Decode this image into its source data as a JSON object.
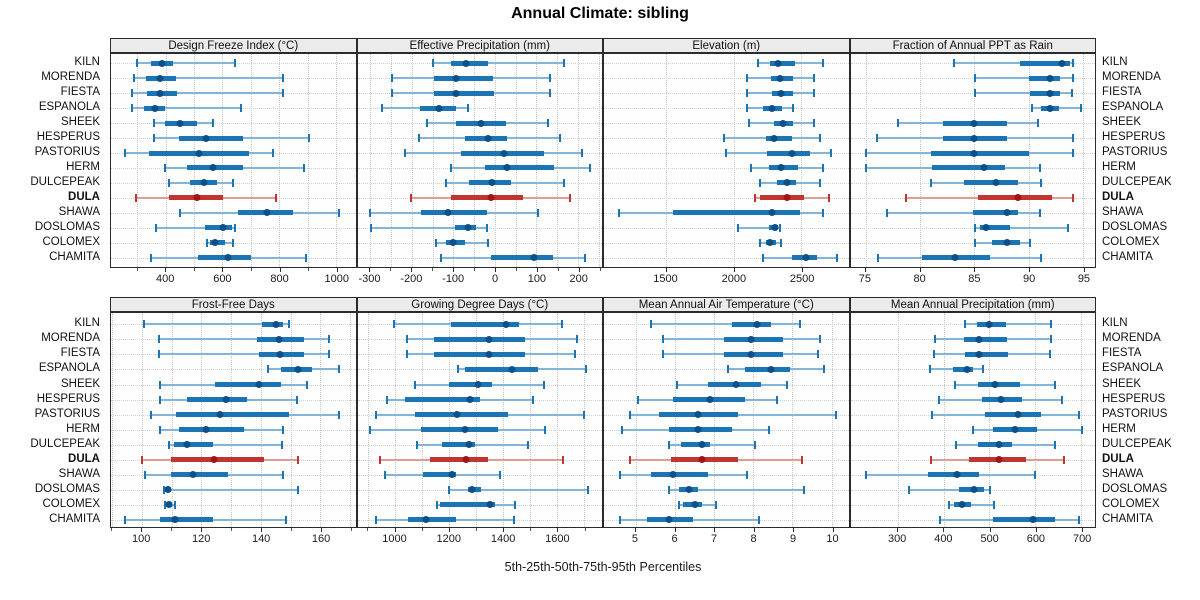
{
  "title": "Annual Climate: sibling",
  "caption": "5th-25th-50th-75th-95th Percentiles",
  "stations": [
    "KILN",
    "MORENDA",
    "FIESTA",
    "ESPANOLA",
    "SHEEK",
    "HESPERUS",
    "PASTORIUS",
    "HERM",
    "DULCEPEAK",
    "DULA",
    "SHAWA",
    "DOSLOMAS",
    "COLOMEX",
    "CHAMITA"
  ],
  "highlight_station": "DULA",
  "percentile_levels": [
    5,
    25,
    50,
    75,
    95
  ],
  "colors": {
    "blue_line": "#84b4d8",
    "blue_bar": "#1b74b3",
    "blue_dot": "#0e4f87",
    "red_line": "#dc9e97",
    "red_bar": "#c13530",
    "red_dot": "#a01616",
    "header_bg": "#ebebeb",
    "gridline": "#c6c6c6"
  },
  "chart_data": [
    {
      "type": "percentile-dotplot",
      "title": "Design Freeze Index (°C)",
      "xlim": [
        207,
        1069
      ],
      "ticks": [
        400,
        600,
        800,
        1000
      ],
      "minor": [
        300,
        500,
        700,
        900
      ],
      "values": [
        [
          300,
          347,
          387,
          426,
          643
        ],
        [
          288,
          332,
          379,
          437,
          812
        ],
        [
          282,
          334,
          381,
          439,
          812
        ],
        [
          282,
          322,
          361,
          398,
          666
        ],
        [
          358,
          399,
          451,
          509,
          567
        ],
        [
          358,
          445,
          542,
          672,
          905
        ],
        [
          255,
          340,
          518,
          695,
          777
        ],
        [
          399,
          474,
          567,
          672,
          888
        ],
        [
          410,
          486,
          535,
          579,
          637
        ],
        [
          294,
          410,
          509,
          602,
          789
        ],
        [
          449,
          655,
          757,
          850,
          1010
        ],
        [
          364,
          538,
          602,
          632,
          643
        ],
        [
          544,
          555,
          573,
          608,
          637
        ],
        [
          347,
          514,
          619,
          701,
          893
        ]
      ]
    },
    {
      "type": "percentile-dotplot",
      "title": "Effective Precipitation (mm)",
      "xlim": [
        -331,
        258
      ],
      "ticks": [
        -300,
        -200,
        -100,
        0,
        100,
        200
      ],
      "minor": [
        -250,
        -150,
        -50,
        50,
        150,
        250
      ],
      "values": [
        [
          -150,
          -105,
          -70,
          -16,
          167
        ],
        [
          -248,
          -147,
          -94,
          -4,
          133
        ],
        [
          -249,
          -147,
          -94,
          -3,
          133
        ],
        [
          -271,
          -181,
          -135,
          -93,
          -66
        ],
        [
          -163,
          -93,
          -34,
          26,
          129
        ],
        [
          -184,
          -72,
          -16,
          28,
          157
        ],
        [
          -217,
          -82,
          23,
          119,
          209
        ],
        [
          -105,
          -24,
          28,
          143,
          228
        ],
        [
          -117,
          -62,
          -6,
          39,
          167
        ],
        [
          -201,
          -105,
          -10,
          67,
          181
        ],
        [
          -302,
          -177,
          -113,
          -18,
          103
        ],
        [
          -298,
          -95,
          -66,
          -45,
          -18
        ],
        [
          -141,
          -117,
          -102,
          -72,
          -16
        ],
        [
          -130,
          -10,
          95,
          139,
          216
        ]
      ]
    },
    {
      "type": "percentile-dotplot",
      "title": "Elevation (m)",
      "xlim": [
        1042,
        2847
      ],
      "ticks": [
        1500,
        2000,
        2500
      ],
      "minor": [],
      "values": [
        [
          2180,
          2265,
          2325,
          2455,
          2660
        ],
        [
          2100,
          2275,
          2340,
          2440,
          2590
        ],
        [
          2100,
          2280,
          2345,
          2440,
          2595
        ],
        [
          2095,
          2215,
          2280,
          2355,
          2440
        ],
        [
          2110,
          2295,
          2365,
          2440,
          2595
        ],
        [
          1930,
          2240,
          2295,
          2430,
          2640
        ],
        [
          1945,
          2245,
          2430,
          2565,
          2715
        ],
        [
          2130,
          2260,
          2350,
          2475,
          2660
        ],
        [
          2190,
          2320,
          2395,
          2460,
          2635
        ],
        [
          2155,
          2190,
          2395,
          2520,
          2700
        ],
        [
          1155,
          1555,
          2280,
          2490,
          2660
        ],
        [
          2030,
          2260,
          2307,
          2325,
          2340
        ],
        [
          2190,
          2240,
          2270,
          2315,
          2350
        ],
        [
          2215,
          2430,
          2535,
          2615,
          2760
        ]
      ]
    },
    {
      "type": "percentile-dotplot",
      "title": "Fraction of Annual PPT as Rain",
      "xlim": [
        73.6,
        96.1
      ],
      "ticks": [
        75,
        80,
        85,
        90,
        95
      ],
      "minor": [],
      "values": [
        [
          83.1,
          89.2,
          93.1,
          93.8,
          94.1
        ],
        [
          85.1,
          90.0,
          92.0,
          92.9,
          94.1
        ],
        [
          85.1,
          90.1,
          92.0,
          92.9,
          94.0
        ],
        [
          90.3,
          91.1,
          92.0,
          92.8,
          94.8
        ],
        [
          78.0,
          82.1,
          85.0,
          88.0,
          90.9
        ],
        [
          76.0,
          82.1,
          85.0,
          88.0,
          94.1
        ],
        [
          75.0,
          81.0,
          85.0,
          90.0,
          94.1
        ],
        [
          75.0,
          81.1,
          85.9,
          87.8,
          91.0
        ],
        [
          81.0,
          84.0,
          87.0,
          89.0,
          91.1
        ],
        [
          78.7,
          85.3,
          89.0,
          92.1,
          94.1
        ],
        [
          77.0,
          84.9,
          88.0,
          89.0,
          91.0
        ],
        [
          85.1,
          85.5,
          86.1,
          88.3,
          93.6
        ],
        [
          85.1,
          86.6,
          88.0,
          89.2,
          90.1
        ],
        [
          76.1,
          80.2,
          83.2,
          86.4,
          91.1
        ]
      ]
    },
    {
      "type": "percentile-dotplot",
      "title": "Frost-Free Days",
      "xlim": [
        89.6,
        171.8
      ],
      "ticks": [
        100,
        120,
        140,
        160
      ],
      "minor": [
        90,
        110,
        130,
        150,
        170
      ],
      "values": [
        [
          100.7,
          140.3,
          145.0,
          147.3,
          149.5
        ],
        [
          105.7,
          138.6,
          146.2,
          154.5,
          162.8
        ],
        [
          105.7,
          139.3,
          146.4,
          154.5,
          162.8
        ],
        [
          142.3,
          146.7,
          152.5,
          157.2,
          166.4
        ],
        [
          106.2,
          124.5,
          139.3,
          146.7,
          155.6
        ],
        [
          106.2,
          115.3,
          128.2,
          135.3,
          152.2
        ],
        [
          103.1,
          111.5,
          126.2,
          149.5,
          166.4
        ],
        [
          106.2,
          112.3,
          121.5,
          134.2,
          147.3
        ],
        [
          109.0,
          110.9,
          115.1,
          124.0,
          147.0
        ],
        [
          100.0,
          109.8,
          124.3,
          141.2,
          152.5
        ],
        [
          101.0,
          109.9,
          117.1,
          129.0,
          147.5
        ],
        [
          107.3,
          107.9,
          108.8,
          109.8,
          152.4
        ],
        [
          107.6,
          108.0,
          109.0,
          110.2,
          111.2
        ],
        [
          94.2,
          106.2,
          111.2,
          124.0,
          148.6
        ]
      ]
    },
    {
      "type": "percentile-dotplot",
      "title": "Growing Degree Days (°C)",
      "xlim": [
        860,
        1768
      ],
      "ticks": [
        1000,
        1200,
        1400,
        1600
      ],
      "minor": [
        900,
        1100,
        1300,
        1500,
        1700
      ],
      "values": [
        [
          995,
          1206,
          1410,
          1459,
          1618
        ],
        [
          1045,
          1143,
          1349,
          1482,
          1674
        ],
        [
          1045,
          1143,
          1349,
          1482,
          1668
        ],
        [
          1233,
          1258,
          1432,
          1529,
          1709
        ],
        [
          1072,
          1199,
          1308,
          1361,
          1554
        ],
        [
          970,
          1036,
          1277,
          1314,
          1513
        ],
        [
          929,
          1072,
          1230,
          1420,
          1703
        ],
        [
          908,
          1097,
          1258,
          1380,
          1556
        ],
        [
          1082,
          1174,
          1274,
          1295,
          1492
        ],
        [
          942,
          1128,
          1264,
          1345,
          1624
        ],
        [
          963,
          1103,
          1210,
          1225,
          1391
        ],
        [
          1199,
          1270,
          1285,
          1318,
          1717
        ],
        [
          1156,
          1165,
          1351,
          1370,
          1444
        ],
        [
          929,
          1047,
          1113,
          1225,
          1442
        ]
      ]
    },
    {
      "type": "percentile-dotplot",
      "title": "Mean Annual Air Temperature (°C)",
      "xlim": [
        4.19,
        10.43
      ],
      "ticks": [
        5,
        6,
        7,
        8,
        9,
        10
      ],
      "minor": [],
      "values": [
        [
          5.4,
          7.45,
          8.1,
          8.45,
          9.2
        ],
        [
          5.7,
          7.25,
          7.95,
          8.75,
          9.7
        ],
        [
          5.7,
          7.25,
          7.95,
          8.75,
          9.65
        ],
        [
          7.35,
          7.8,
          8.45,
          8.95,
          9.8
        ],
        [
          6.05,
          6.85,
          7.55,
          8.2,
          8.85
        ],
        [
          5.05,
          5.95,
          6.9,
          7.8,
          8.6
        ],
        [
          4.85,
          5.6,
          6.6,
          7.6,
          10.1
        ],
        [
          4.65,
          5.85,
          6.6,
          7.45,
          8.4
        ],
        [
          5.85,
          6.15,
          6.7,
          6.9,
          8.05
        ],
        [
          4.85,
          5.9,
          6.7,
          7.6,
          9.25
        ],
        [
          4.6,
          5.4,
          5.95,
          6.85,
          7.85
        ],
        [
          5.85,
          6.1,
          6.35,
          6.6,
          9.3
        ],
        [
          6.1,
          6.2,
          6.5,
          6.7,
          7.05
        ],
        [
          4.6,
          5.3,
          5.85,
          6.45,
          8.15
        ]
      ]
    },
    {
      "type": "percentile-dotplot",
      "title": "Mean Annual Precipitation (mm)",
      "xlim": [
        197,
        730
      ],
      "ticks": [
        300,
        400,
        500,
        600,
        700
      ],
      "minor": [],
      "values": [
        [
          446,
          472,
          498,
          536,
          635
        ],
        [
          381,
          445,
          478,
          539,
          633
        ],
        [
          380,
          446,
          478,
          541,
          631
        ],
        [
          371,
          420,
          450,
          464,
          485
        ],
        [
          425,
          476,
          512,
          566,
          643
        ],
        [
          391,
          483,
          526,
          570,
          657
        ],
        [
          374,
          491,
          563,
          613,
          696
        ],
        [
          463,
          507,
          555,
          604,
          702
        ],
        [
          427,
          474,
          520,
          550,
          643
        ],
        [
          372,
          456,
          520,
          579,
          662
        ],
        [
          231,
          365,
          429,
          478,
          599
        ],
        [
          324,
          434,
          467,
          488,
          501
        ],
        [
          411,
          423,
          441,
          459,
          509
        ],
        [
          392,
          507,
          595,
          642,
          696
        ]
      ]
    }
  ]
}
